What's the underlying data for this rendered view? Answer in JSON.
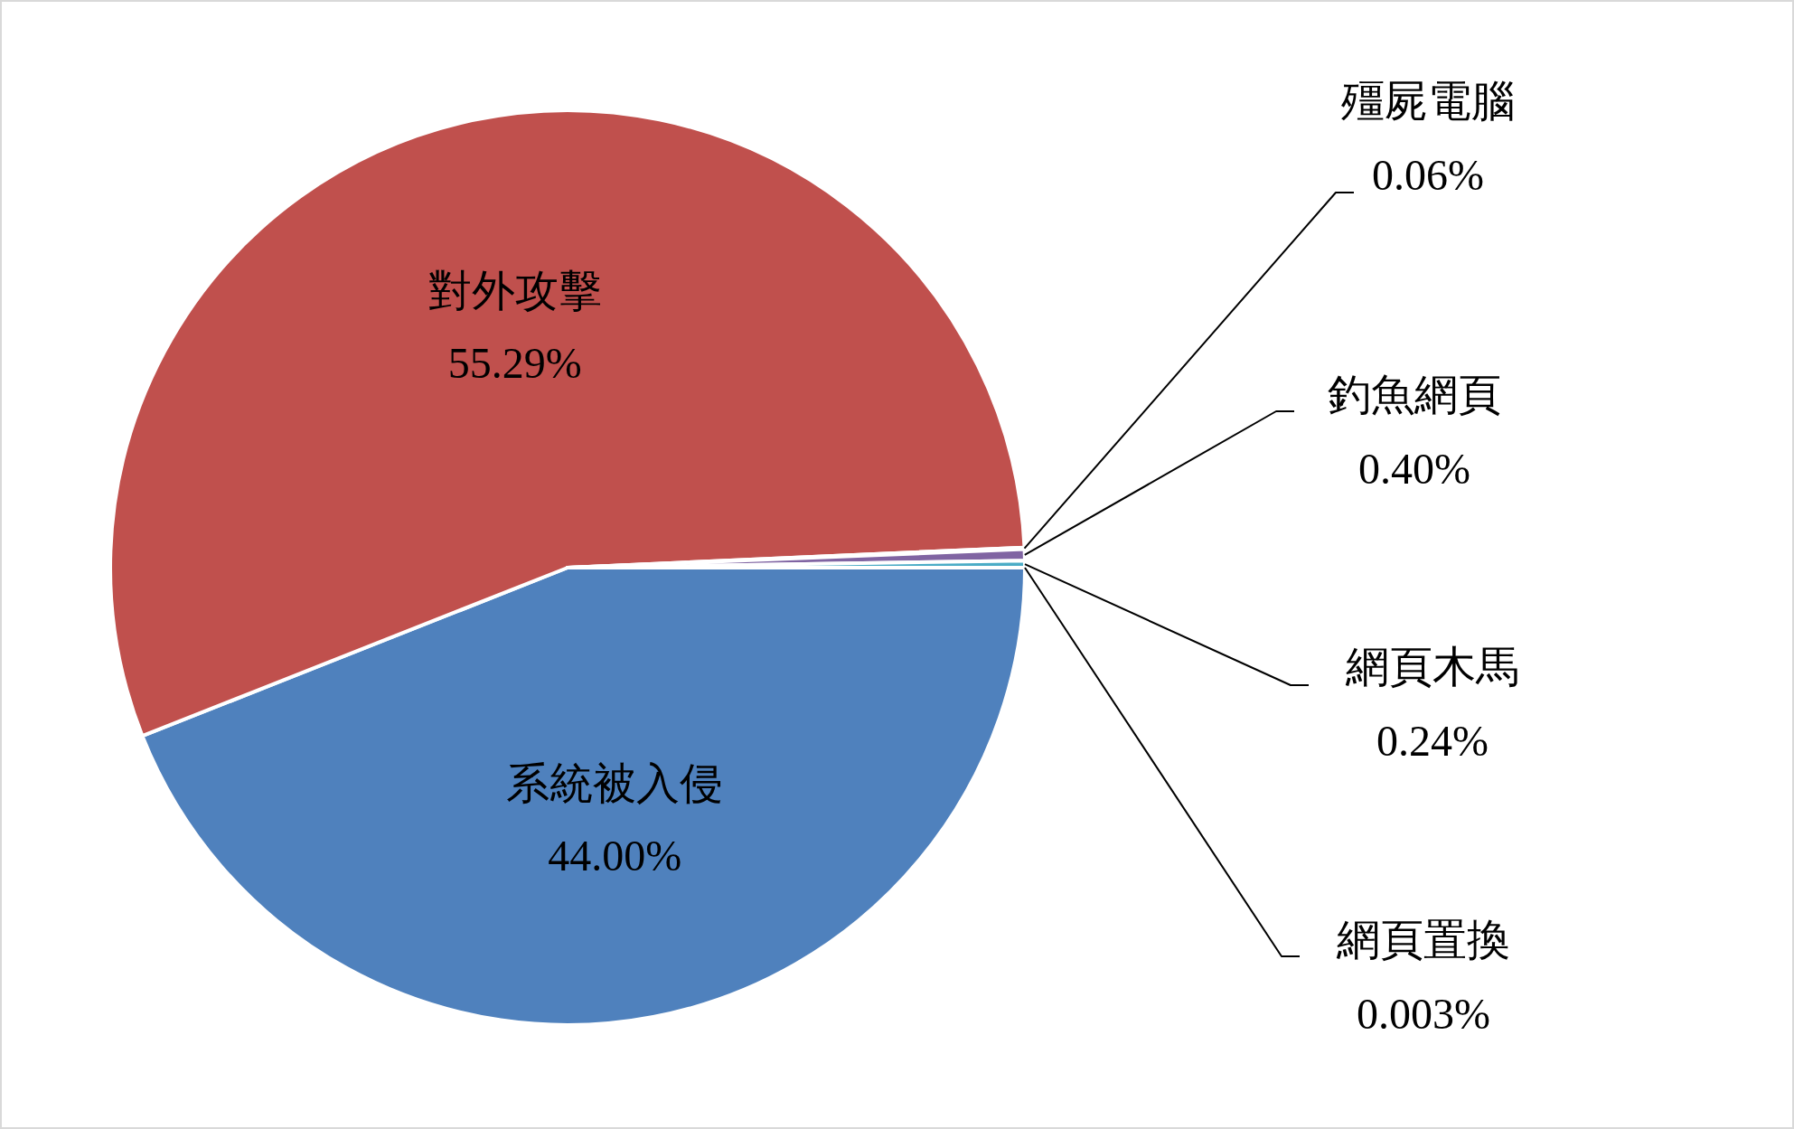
{
  "chart_data": {
    "type": "pie",
    "categories": [
      "系統被入侵",
      "對外攻擊",
      "殭屍電腦",
      "釣魚網頁",
      "網頁木馬",
      "網頁置換"
    ],
    "values": [
      44.0,
      55.29,
      0.06,
      0.4,
      0.24,
      0.003
    ],
    "value_labels": [
      "44.00%",
      "55.29%",
      "0.06%",
      "0.40%",
      "0.24%",
      "0.003%"
    ],
    "colors": [
      "#4f81bd",
      "#c0504d",
      "#9bbb59",
      "#8064a2",
      "#4bacc6",
      "#f79646"
    ]
  }
}
